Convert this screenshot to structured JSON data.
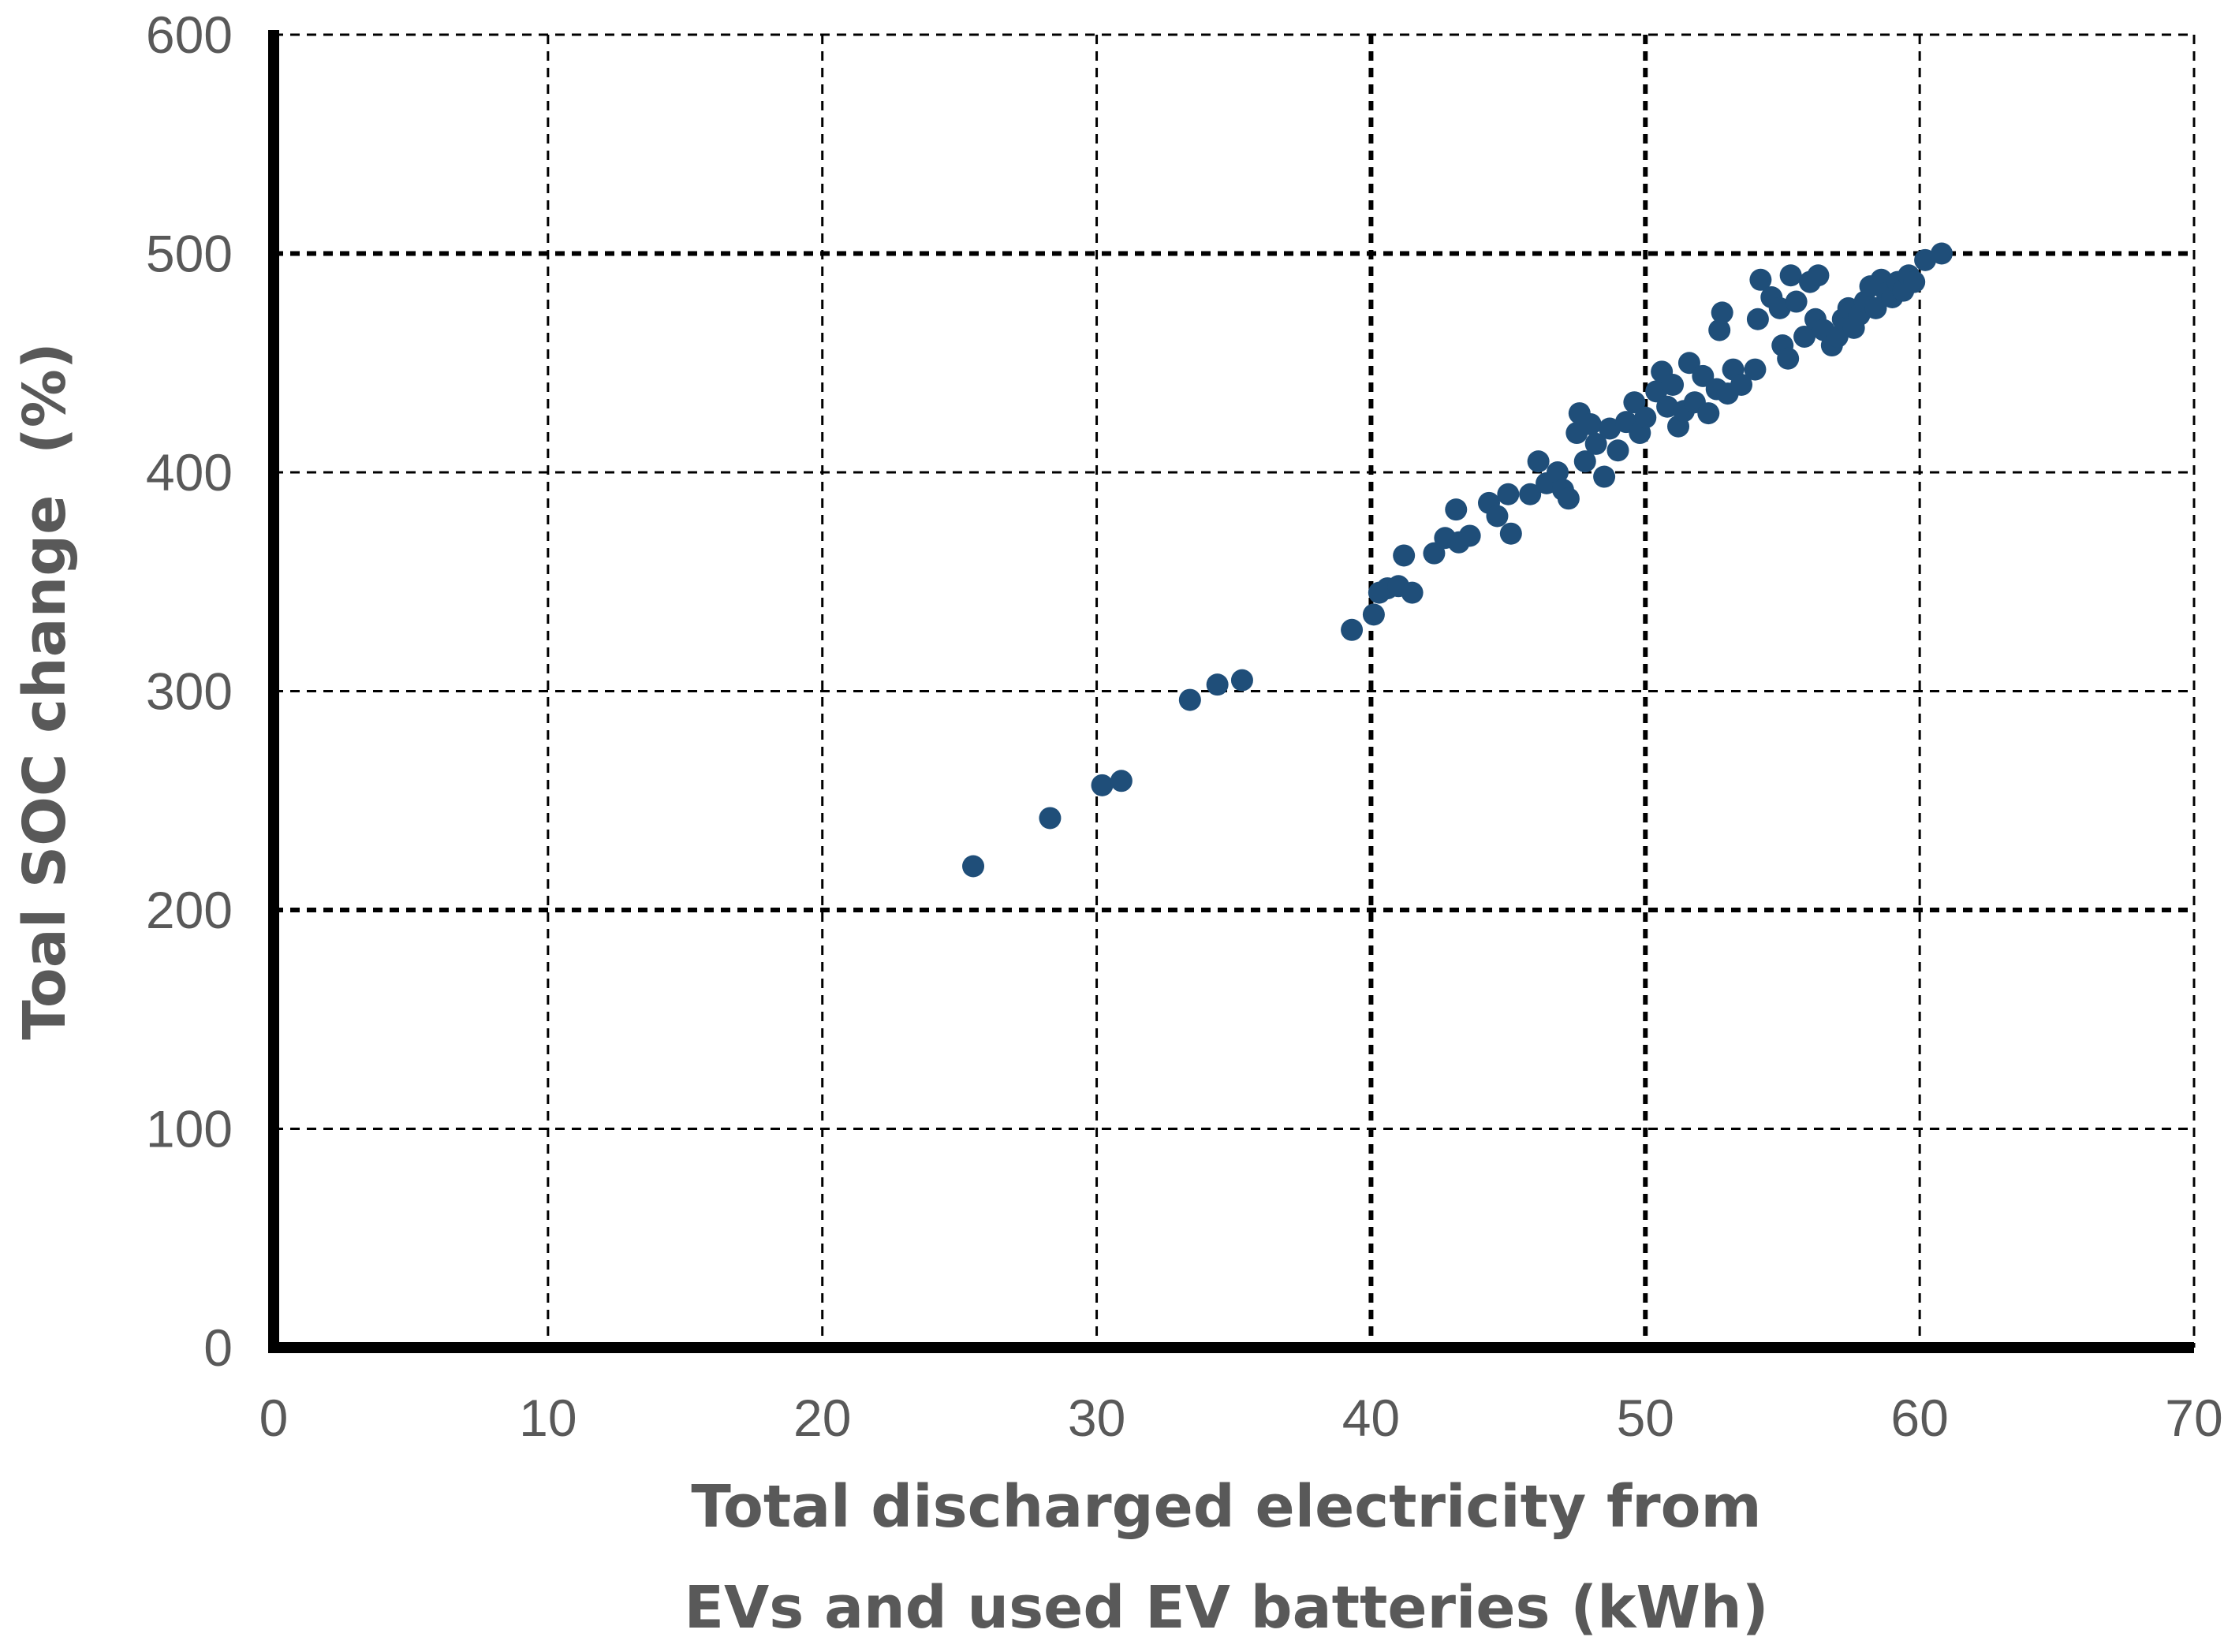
{
  "chart_data": {
    "type": "scatter",
    "title": "",
    "xlabel_lines": [
      "Total discharged electricity from",
      "EVs and used EV batteries (kWh)"
    ],
    "ylabel": "Toal SOC change  (%)",
    "xlim": [
      0,
      70
    ],
    "ylim": [
      0,
      600
    ],
    "x_ticks": [
      0,
      10,
      20,
      30,
      40,
      50,
      60,
      70
    ],
    "y_ticks": [
      0,
      100,
      200,
      300,
      400,
      500,
      600
    ],
    "x_tick_labels": [
      "0",
      "10",
      "20",
      "30",
      "40",
      "50",
      "60",
      "70"
    ],
    "y_tick_labels": [
      "0",
      "100",
      "200",
      "300",
      "400",
      "500",
      "600"
    ],
    "grid": true,
    "marker_color": "#1f4e79",
    "series": [
      {
        "name": "Total SOC change",
        "points": [
          [
            25.5,
            220
          ],
          [
            28.3,
            242
          ],
          [
            30.2,
            257
          ],
          [
            30.9,
            259
          ],
          [
            33.4,
            296
          ],
          [
            34.4,
            303
          ],
          [
            35.3,
            305
          ],
          [
            39.3,
            328
          ],
          [
            40.1,
            335
          ],
          [
            40.3,
            345
          ],
          [
            40.6,
            347
          ],
          [
            41.0,
            348
          ],
          [
            41.2,
            362
          ],
          [
            41.5,
            345
          ],
          [
            42.3,
            363
          ],
          [
            42.7,
            370
          ],
          [
            43.1,
            383
          ],
          [
            43.2,
            368
          ],
          [
            43.6,
            371
          ],
          [
            44.3,
            386
          ],
          [
            44.6,
            380
          ],
          [
            45.0,
            390
          ],
          [
            45.1,
            372
          ],
          [
            45.8,
            390
          ],
          [
            46.1,
            405
          ],
          [
            46.4,
            395
          ],
          [
            46.8,
            400
          ],
          [
            47.0,
            392
          ],
          [
            47.2,
            388
          ],
          [
            47.5,
            418
          ],
          [
            47.6,
            427
          ],
          [
            47.8,
            405
          ],
          [
            48.0,
            422
          ],
          [
            48.2,
            413
          ],
          [
            48.5,
            398
          ],
          [
            48.7,
            420
          ],
          [
            49.0,
            410
          ],
          [
            49.3,
            423
          ],
          [
            49.6,
            432
          ],
          [
            49.8,
            418
          ],
          [
            50.0,
            425
          ],
          [
            50.4,
            437
          ],
          [
            50.6,
            446
          ],
          [
            50.8,
            430
          ],
          [
            51.0,
            440
          ],
          [
            51.2,
            421
          ],
          [
            51.4,
            428
          ],
          [
            51.6,
            450
          ],
          [
            51.8,
            432
          ],
          [
            52.1,
            444
          ],
          [
            52.3,
            427
          ],
          [
            52.6,
            438
          ],
          [
            52.7,
            465
          ],
          [
            52.8,
            473
          ],
          [
            53.0,
            436
          ],
          [
            53.2,
            447
          ],
          [
            53.5,
            440
          ],
          [
            54.0,
            447
          ],
          [
            54.1,
            470
          ],
          [
            54.2,
            488
          ],
          [
            54.6,
            480
          ],
          [
            54.9,
            475
          ],
          [
            55.0,
            458
          ],
          [
            55.2,
            452
          ],
          [
            55.3,
            490
          ],
          [
            55.5,
            478
          ],
          [
            55.8,
            462
          ],
          [
            56.0,
            487
          ],
          [
            56.2,
            470
          ],
          [
            56.3,
            490
          ],
          [
            56.5,
            465
          ],
          [
            56.8,
            458
          ],
          [
            57.0,
            462
          ],
          [
            57.2,
            470
          ],
          [
            57.4,
            475
          ],
          [
            57.6,
            466
          ],
          [
            57.8,
            472
          ],
          [
            58.0,
            478
          ],
          [
            58.2,
            485
          ],
          [
            58.4,
            475
          ],
          [
            58.6,
            488
          ],
          [
            58.8,
            482
          ],
          [
            59.0,
            480
          ],
          [
            59.2,
            487
          ],
          [
            59.4,
            483
          ],
          [
            59.6,
            490
          ],
          [
            59.8,
            487
          ],
          [
            60.2,
            497
          ],
          [
            60.8,
            500
          ]
        ]
      }
    ]
  }
}
